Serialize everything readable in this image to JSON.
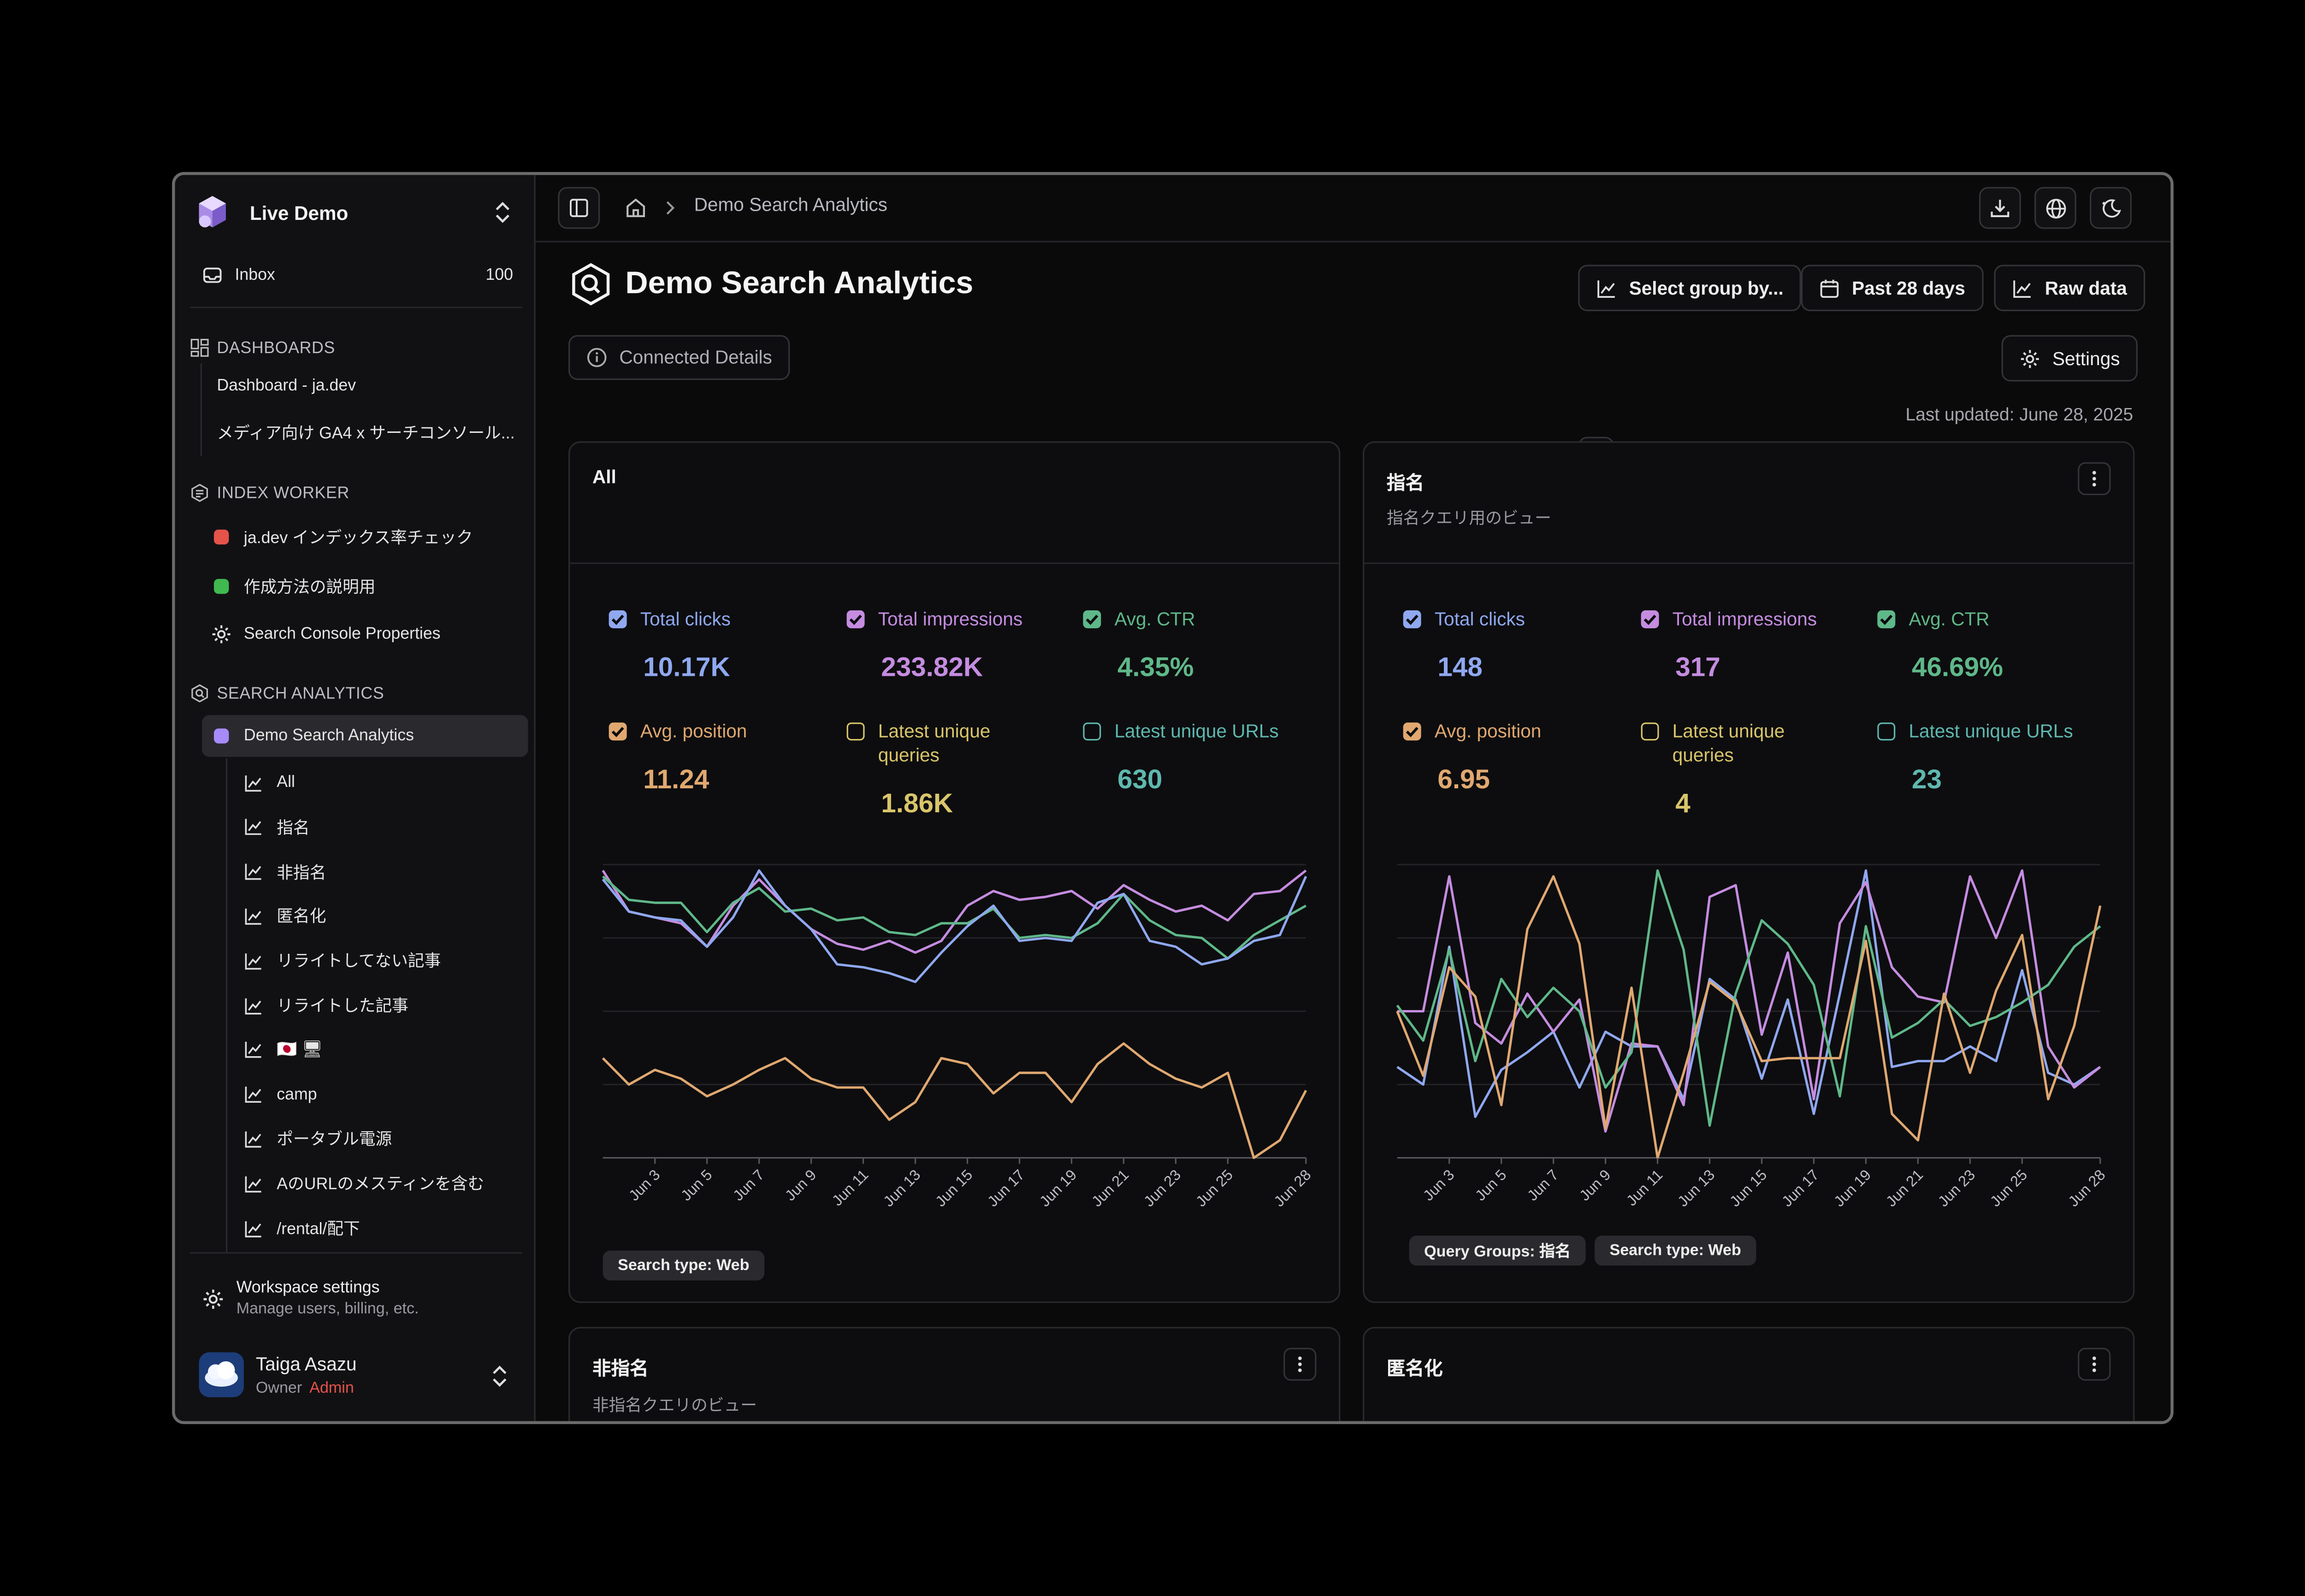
{
  "workspace": {
    "name": "Live Demo"
  },
  "inbox": {
    "label": "Inbox",
    "count": "100"
  },
  "sidebar": {
    "dashboards_header": "DASHBOARDS",
    "dashboards": [
      "Dashboard - ja.dev",
      "メディア向け GA4 x サーチコンソール..."
    ],
    "index_header": "INDEX WORKER",
    "index_items": [
      {
        "label": "ja.dev インデックス率チェック",
        "color": "#e5534b"
      },
      {
        "label": "作成方法の説明用",
        "color": "#3fb950"
      },
      {
        "label": "Search Console Properties",
        "icon": "gear-icon"
      }
    ],
    "sa_header": "SEARCH ANALYTICS",
    "sa_active": {
      "label": "Demo Search Analytics",
      "color": "#a78bfa"
    },
    "sa_items": [
      "All",
      "指名",
      "非指名",
      "匿名化",
      "リライトしてない記事",
      "リライトした記事",
      "🇯🇵 🖥",
      "camp",
      "ポータブル電源",
      "AのURLのメスティンを含む",
      "/rental/配下"
    ],
    "settings_title": "Workspace settings",
    "settings_sub": "Manage users, billing, etc.",
    "user_name": "Taiga Asazu",
    "user_role": "Owner",
    "user_badge": "Admin"
  },
  "breadcrumb": {
    "current": "Demo Search Analytics"
  },
  "header": {
    "title": "Demo Search Analytics",
    "group_by": "Select group by...",
    "date_range": "Past 28 days",
    "raw_data": "Raw data",
    "connected": "Connected Details",
    "settings": "Settings",
    "last_updated": "Last updated: June 28, 2025"
  },
  "colors": {
    "clicks": "#8fa8f0",
    "impressions": "#c58ce0",
    "ctr": "#5fb889",
    "position": "#e0a870",
    "queries": "#d9c56a",
    "urls": "#5fb8b0"
  },
  "metric_labels": {
    "clicks": "Total clicks",
    "impressions": "Total impressions",
    "ctr": "Avg. CTR",
    "position": "Avg. position",
    "queries": "Latest unique queries",
    "urls": "Latest unique URLs"
  },
  "cards": [
    {
      "title": "All",
      "subtitle": "",
      "metrics": {
        "clicks": "10.17K",
        "impressions": "233.82K",
        "ctr": "4.35%",
        "position": "11.24",
        "queries": "1.86K",
        "urls": "630"
      },
      "chips": [
        "Search type: Web"
      ]
    },
    {
      "title": "指名",
      "subtitle": "指名クエリ用のビュー",
      "metrics": {
        "clicks": "148",
        "impressions": "317",
        "ctr": "46.69%",
        "position": "6.95",
        "queries": "4",
        "urls": "23"
      },
      "chips": [
        "Query Groups: 指名",
        "Search type: Web"
      ]
    },
    {
      "title": "非指名",
      "subtitle": "非指名クエリのビュー"
    },
    {
      "title": "匿名化",
      "subtitle": ""
    }
  ],
  "chart_data": [
    {
      "type": "line",
      "x": [
        "Jun 1",
        "Jun 2",
        "Jun 3",
        "Jun 4",
        "Jun 5",
        "Jun 6",
        "Jun 7",
        "Jun 8",
        "Jun 9",
        "Jun 10",
        "Jun 11",
        "Jun 12",
        "Jun 13",
        "Jun 14",
        "Jun 15",
        "Jun 16",
        "Jun 17",
        "Jun 18",
        "Jun 19",
        "Jun 20",
        "Jun 21",
        "Jun 22",
        "Jun 23",
        "Jun 24",
        "Jun 25",
        "Jun 26",
        "Jun 27",
        "Jun 28"
      ],
      "tick_labels": [
        "Jun 3",
        "Jun 5",
        "Jun 7",
        "Jun 9",
        "Jun 11",
        "Jun 13",
        "Jun 15",
        "Jun 17",
        "Jun 19",
        "Jun 21",
        "Jun 23",
        "Jun 25",
        "Jun 28"
      ],
      "ylim": [
        0,
        1
      ],
      "grid": true,
      "series": [
        {
          "name": "Total impressions",
          "color": "#c58ce0",
          "values": [
            0.98,
            0.84,
            0.82,
            0.8,
            0.72,
            0.86,
            0.95,
            0.86,
            0.78,
            0.73,
            0.71,
            0.74,
            0.7,
            0.74,
            0.86,
            0.91,
            0.88,
            0.89,
            0.91,
            0.85,
            0.93,
            0.88,
            0.84,
            0.86,
            0.81,
            0.9,
            0.91,
            0.98
          ]
        },
        {
          "name": "Avg. CTR",
          "color": "#5fb889",
          "values": [
            0.96,
            0.88,
            0.87,
            0.87,
            0.77,
            0.87,
            0.92,
            0.84,
            0.85,
            0.81,
            0.82,
            0.77,
            0.76,
            0.8,
            0.8,
            0.85,
            0.75,
            0.76,
            0.75,
            0.8,
            0.9,
            0.81,
            0.76,
            0.75,
            0.68,
            0.76,
            0.81,
            0.86
          ]
        },
        {
          "name": "Total clicks",
          "color": "#8fa8f0",
          "values": [
            0.95,
            0.84,
            0.82,
            0.81,
            0.72,
            0.82,
            0.98,
            0.86,
            0.78,
            0.66,
            0.65,
            0.63,
            0.6,
            0.7,
            0.79,
            0.86,
            0.74,
            0.75,
            0.74,
            0.87,
            0.9,
            0.74,
            0.72,
            0.66,
            0.68,
            0.74,
            0.76,
            0.96
          ]
        },
        {
          "name": "Avg. position",
          "color": "#e0a870",
          "values": [
            0.34,
            0.25,
            0.3,
            0.27,
            0.21,
            0.25,
            0.3,
            0.34,
            0.27,
            0.24,
            0.24,
            0.13,
            0.19,
            0.34,
            0.32,
            0.22,
            0.29,
            0.29,
            0.19,
            0.32,
            0.39,
            0.32,
            0.27,
            0.24,
            0.29,
            0.0,
            0.06,
            0.23
          ]
        }
      ]
    },
    {
      "type": "line",
      "x": [
        "Jun 1",
        "Jun 2",
        "Jun 3",
        "Jun 4",
        "Jun 5",
        "Jun 6",
        "Jun 7",
        "Jun 8",
        "Jun 9",
        "Jun 10",
        "Jun 11",
        "Jun 12",
        "Jun 13",
        "Jun 14",
        "Jun 15",
        "Jun 16",
        "Jun 17",
        "Jun 18",
        "Jun 19",
        "Jun 20",
        "Jun 21",
        "Jun 22",
        "Jun 23",
        "Jun 24",
        "Jun 25",
        "Jun 26",
        "Jun 27",
        "Jun 28"
      ],
      "tick_labels": [
        "Jun 3",
        "Jun 5",
        "Jun 7",
        "Jun 9",
        "Jun 11",
        "Jun 13",
        "Jun 15",
        "Jun 17",
        "Jun 19",
        "Jun 21",
        "Jun 23",
        "Jun 25",
        "Jun 28"
      ],
      "ylim": [
        0,
        1
      ],
      "grid": true,
      "series": [
        {
          "name": "Total clicks",
          "color": "#8fa8f0",
          "values": [
            0.31,
            0.25,
            0.72,
            0.14,
            0.3,
            0.36,
            0.43,
            0.24,
            0.43,
            0.38,
            0.38,
            0.2,
            0.61,
            0.54,
            0.27,
            0.54,
            0.15,
            0.56,
            0.98,
            0.31,
            0.33,
            0.33,
            0.38,
            0.33,
            0.64,
            0.29,
            0.25,
            0.31
          ]
        },
        {
          "name": "Total impressions",
          "color": "#c58ce0",
          "values": [
            0.5,
            0.5,
            0.96,
            0.46,
            0.39,
            0.56,
            0.43,
            0.54,
            0.09,
            0.39,
            0.38,
            0.18,
            0.89,
            0.93,
            0.42,
            0.7,
            0.2,
            0.8,
            0.94,
            0.65,
            0.55,
            0.53,
            0.96,
            0.75,
            0.98,
            0.38,
            0.24,
            0.31
          ]
        },
        {
          "name": "Avg. CTR",
          "color": "#5fb889",
          "values": [
            0.52,
            0.4,
            0.71,
            0.33,
            0.61,
            0.48,
            0.58,
            0.5,
            0.24,
            0.36,
            0.98,
            0.71,
            0.11,
            0.56,
            0.81,
            0.73,
            0.59,
            0.21,
            0.79,
            0.41,
            0.46,
            0.54,
            0.45,
            0.48,
            0.53,
            0.59,
            0.72,
            0.79
          ]
        },
        {
          "name": "Avg. position",
          "color": "#e0a870",
          "values": [
            0.5,
            0.28,
            0.65,
            0.55,
            0.18,
            0.78,
            0.96,
            0.73,
            0.1,
            0.58,
            0.0,
            0.29,
            0.6,
            0.53,
            0.33,
            0.34,
            0.34,
            0.34,
            0.74,
            0.15,
            0.06,
            0.56,
            0.29,
            0.57,
            0.76,
            0.2,
            0.45,
            0.86
          ]
        }
      ]
    }
  ]
}
